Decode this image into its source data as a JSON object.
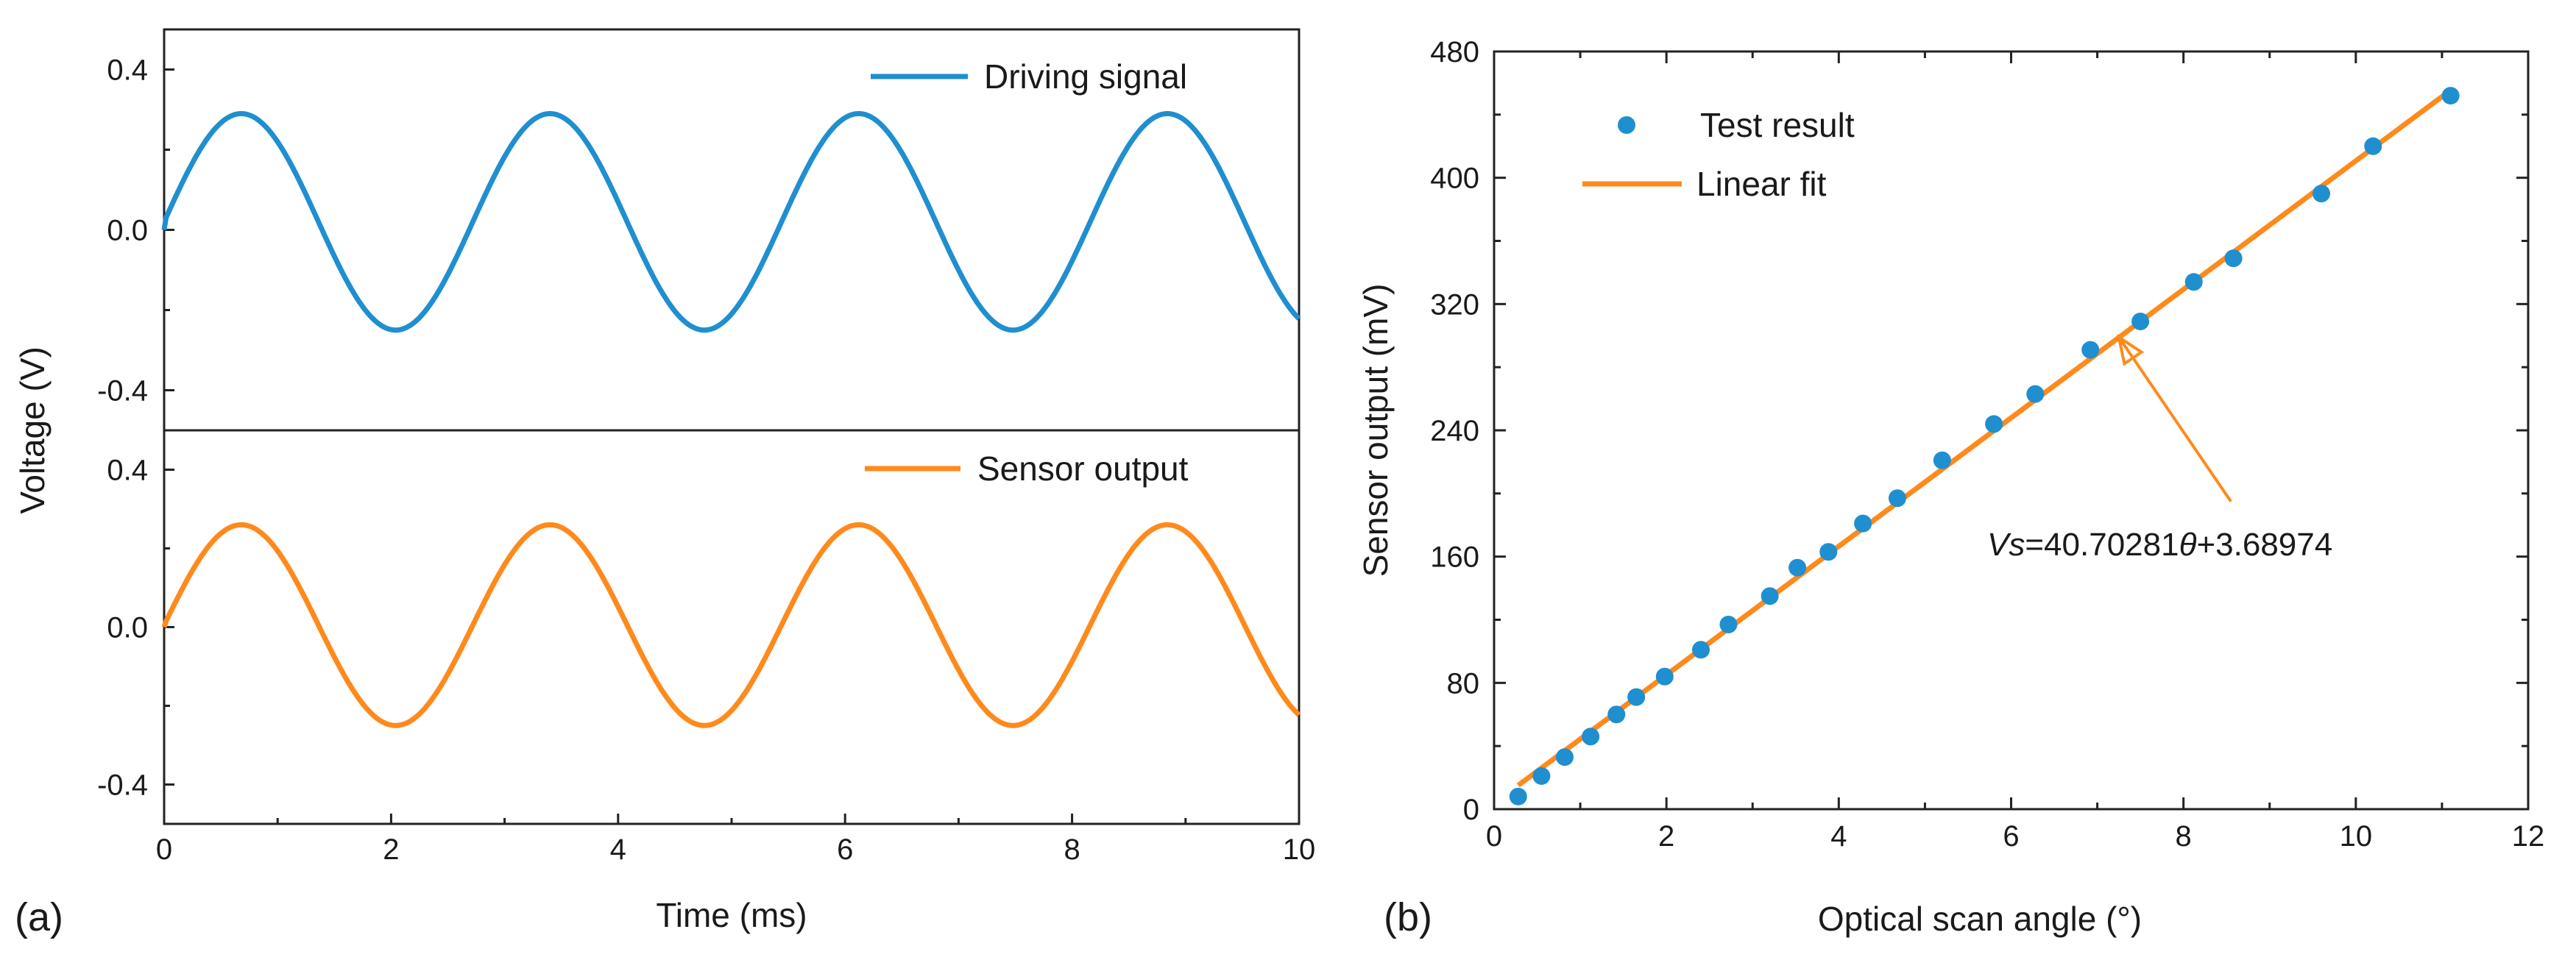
{
  "chart_data": [
    {
      "panel_label": "(a)",
      "type": "line",
      "xlabel": "Time (ms)",
      "ylabel": "Voltage (V)",
      "xlim": [
        0,
        10
      ],
      "x_ticks": [
        "0",
        "2",
        "4",
        "6",
        "8",
        "10"
      ],
      "subplots": [
        {
          "ylim": [
            -0.5,
            0.5
          ],
          "y_ticks": [
            "-0.4",
            "0.0",
            "0.4"
          ],
          "series": [
            {
              "name": "Driving signal",
              "color": "#1f8fd0",
              "offset": 0.02,
              "amplitude": 0.27,
              "period_ms": 2.72,
              "phase_start": 0.0
            }
          ]
        },
        {
          "ylim": [
            -0.5,
            0.5
          ],
          "y_ticks": [
            "-0.4",
            "0.0",
            "0.4"
          ],
          "series": [
            {
              "name": "Sensor output",
              "color": "#ff8a1c",
              "offset": 0.005,
              "amplitude": 0.255,
              "period_ms": 2.72,
              "phase_start": 0.0
            }
          ]
        }
      ]
    },
    {
      "panel_label": "(b)",
      "type": "scatter",
      "xlabel": "Optical scan angle  (°)",
      "ylabel": "Sensor output (mV)",
      "xlim": [
        0,
        12
      ],
      "ylim": [
        0,
        480
      ],
      "x_ticks": [
        "0",
        "2",
        "4",
        "6",
        "8",
        "10",
        "12"
      ],
      "y_ticks": [
        "0",
        "80",
        "160",
        "240",
        "320",
        "400",
        "480"
      ],
      "series": [
        {
          "name": "Test result",
          "color": "#1f8fd0",
          "x": [
            0.28,
            0.55,
            0.82,
            1.12,
            1.42,
            1.65,
            1.98,
            2.4,
            2.72,
            3.2,
            3.52,
            3.88,
            4.28,
            4.68,
            5.2,
            5.8,
            6.28,
            6.92,
            7.5,
            8.12,
            8.58,
            9.6,
            10.2,
            11.1
          ],
          "y": [
            8,
            21,
            33,
            46,
            60,
            71,
            84,
            101,
            117,
            135,
            153,
            163,
            181,
            197,
            221,
            244,
            263,
            291,
            309,
            334,
            349,
            390,
            420,
            452
          ]
        },
        {
          "name": "Linear fit",
          "color": "#ff8a1c",
          "type": "line",
          "slope": 40.70281,
          "intercept": 3.68974,
          "x": [
            0.28,
            11.1
          ]
        }
      ],
      "annotation": {
        "prefix": "Vs",
        "coef1": "=40.70281",
        "var": "θ",
        "coef2": "+3.68974",
        "arrow_target": [
          7.25,
          299
        ],
        "arrow_tail": [
          8.55,
          195
        ]
      }
    }
  ]
}
